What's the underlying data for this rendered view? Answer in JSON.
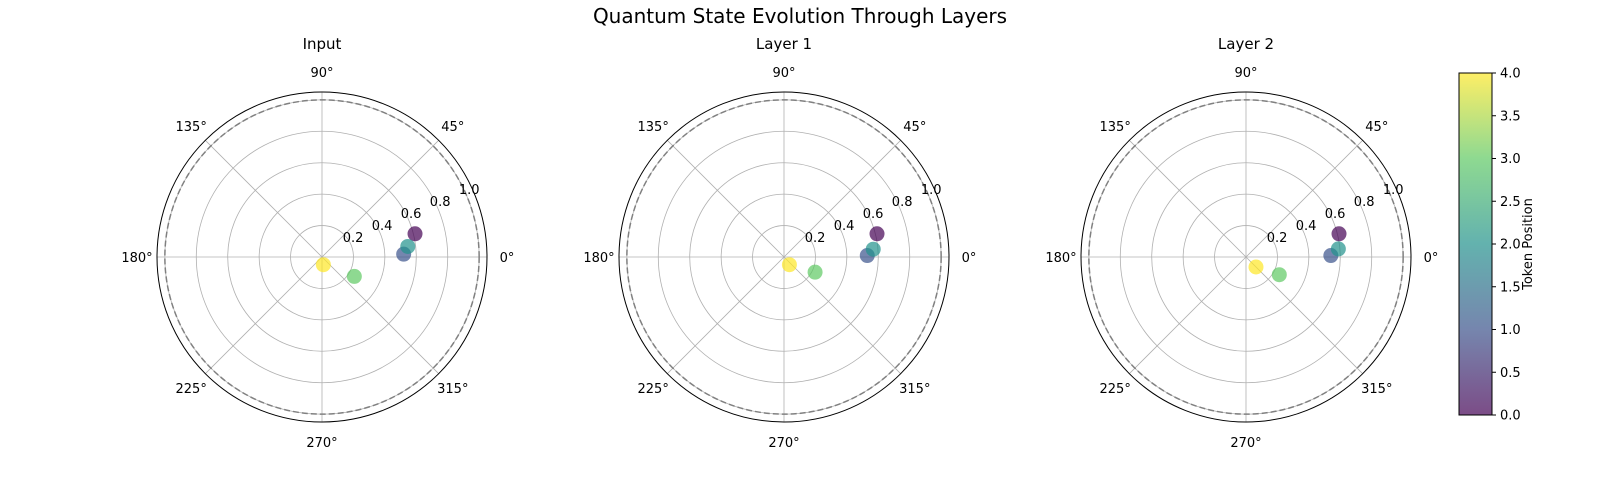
{
  "figure": {
    "title": "Quantum State Evolution Through Layers"
  },
  "chart_data": {
    "type": "scatter",
    "projection": "polar",
    "theta_unit": "degrees",
    "theta_tick_labels": [
      "0°",
      "45°",
      "90°",
      "135°",
      "180°",
      "225°",
      "270°",
      "315°"
    ],
    "r_tick_labels": [
      "0.2",
      "0.4",
      "0.6",
      "0.8",
      "1.0"
    ],
    "r_ticks": [
      0.2,
      0.4,
      0.6,
      0.8,
      1.0
    ],
    "rlim": [
      0,
      1.05
    ],
    "unit_circle": {
      "r": 1.0,
      "style": "dashed",
      "color": "#808080"
    },
    "grid": true,
    "colormap": "viridis",
    "color_value_label": "token",
    "colorbar": {
      "label": "Token Position",
      "range": [
        0,
        4
      ],
      "ticks": [
        "0.0",
        "0.5",
        "1.0",
        "1.5",
        "2.0",
        "2.5",
        "3.0",
        "3.5",
        "4.0"
      ]
    },
    "panels": [
      {
        "title": "Input",
        "points": [
          {
            "token": 0,
            "r": 0.61,
            "theta": 14
          },
          {
            "token": 1,
            "r": 0.52,
            "theta": 2
          },
          {
            "token": 2,
            "r": 0.55,
            "theta": 7
          },
          {
            "token": 3,
            "r": 0.24,
            "theta": -31
          },
          {
            "token": 4,
            "r": 0.05,
            "theta": -80
          }
        ]
      },
      {
        "title": "Layer 1",
        "points": [
          {
            "token": 0,
            "r": 0.61,
            "theta": 14
          },
          {
            "token": 1,
            "r": 0.53,
            "theta": 1
          },
          {
            "token": 2,
            "r": 0.57,
            "theta": 5
          },
          {
            "token": 3,
            "r": 0.22,
            "theta": -26
          },
          {
            "token": 4,
            "r": 0.06,
            "theta": -55
          }
        ]
      },
      {
        "title": "Layer 2",
        "points": [
          {
            "token": 0,
            "r": 0.61,
            "theta": 14
          },
          {
            "token": 1,
            "r": 0.54,
            "theta": 1
          },
          {
            "token": 2,
            "r": 0.59,
            "theta": 5
          },
          {
            "token": 3,
            "r": 0.24,
            "theta": -28
          },
          {
            "token": 4,
            "r": 0.09,
            "theta": -45
          }
        ]
      }
    ]
  }
}
